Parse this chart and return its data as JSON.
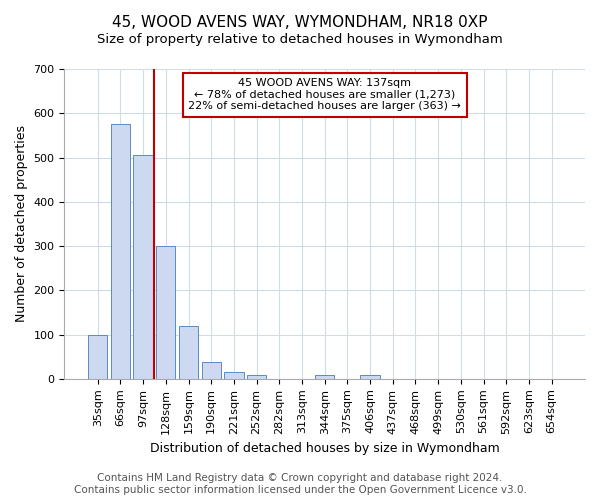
{
  "title": "45, WOOD AVENS WAY, WYMONDHAM, NR18 0XP",
  "subtitle": "Size of property relative to detached houses in Wymondham",
  "xlabel": "Distribution of detached houses by size in Wymondham",
  "ylabel": "Number of detached properties",
  "bar_labels": [
    "35sqm",
    "66sqm",
    "97sqm",
    "128sqm",
    "159sqm",
    "190sqm",
    "221sqm",
    "252sqm",
    "282sqm",
    "313sqm",
    "344sqm",
    "375sqm",
    "406sqm",
    "437sqm",
    "468sqm",
    "499sqm",
    "530sqm",
    "561sqm",
    "592sqm",
    "623sqm",
    "654sqm"
  ],
  "bar_values": [
    100,
    575,
    505,
    300,
    120,
    38,
    15,
    8,
    0,
    0,
    8,
    0,
    8,
    0,
    0,
    0,
    0,
    0,
    0,
    0,
    0
  ],
  "bar_color": "#ccd9f0",
  "bar_edge_color": "#5a8ac6",
  "vline_x": 2.5,
  "vline_color": "#c00000",
  "annotation_text": "45 WOOD AVENS WAY: 137sqm\n← 78% of detached houses are smaller (1,273)\n22% of semi-detached houses are larger (363) →",
  "annotation_box_color": "#ffffff",
  "annotation_box_edge": "#c00000",
  "ylim": [
    0,
    700
  ],
  "yticks": [
    0,
    100,
    200,
    300,
    400,
    500,
    600,
    700
  ],
  "footer_text": "Contains HM Land Registry data © Crown copyright and database right 2024.\nContains public sector information licensed under the Open Government Licence v3.0.",
  "background_color": "#ffffff",
  "plot_background": "#ffffff",
  "grid_color": "#d0dce8",
  "title_fontsize": 11,
  "label_fontsize": 9,
  "tick_fontsize": 8,
  "footer_fontsize": 7.5,
  "bar_width": 0.85
}
